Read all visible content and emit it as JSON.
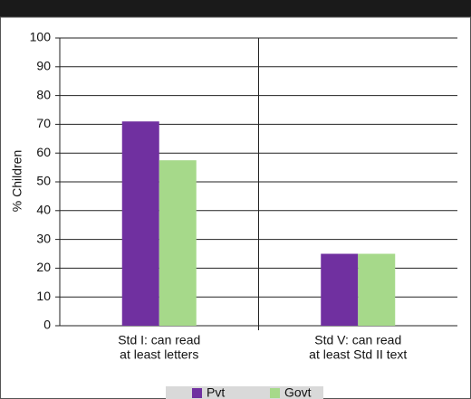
{
  "chart_data": {
    "type": "bar",
    "y_label": "% Children",
    "categories": [
      [
        "Std I: can read",
        "at least letters"
      ],
      [
        "Std V: can read",
        "at least Std II text"
      ]
    ],
    "series": [
      {
        "name": "Pvt",
        "color": "#7030a0",
        "values": [
          71,
          25
        ]
      },
      {
        "name": "Govt",
        "color": "#a6d98a",
        "values": [
          57.5,
          25
        ]
      }
    ],
    "ylim": [
      0,
      100
    ],
    "yticks": [
      0,
      10,
      20,
      30,
      40,
      50,
      60,
      70,
      80,
      90,
      100
    ],
    "grid": true,
    "legend": "bottom"
  }
}
